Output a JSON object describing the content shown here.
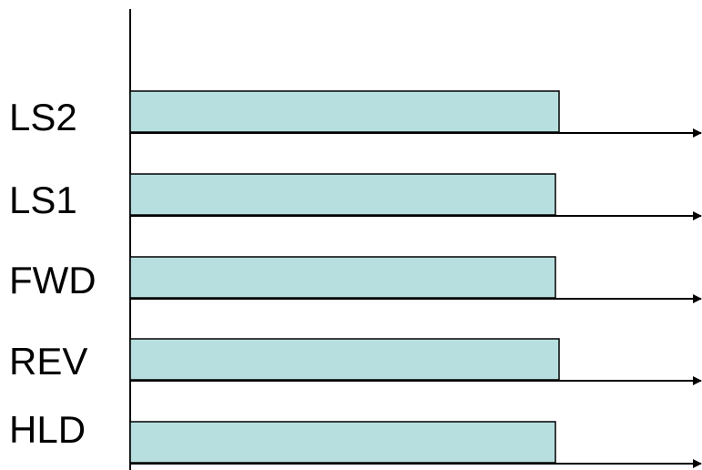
{
  "diagram": {
    "signals": [
      {
        "label": "LS2"
      },
      {
        "label": "LS1"
      },
      {
        "label": "FWD"
      },
      {
        "label": "REV"
      },
      {
        "label": "HLD"
      }
    ],
    "colors": {
      "bar_fill": "#b8dfe0",
      "bar_stroke": "#000000",
      "line": "#000000",
      "background": "#ffffff"
    }
  }
}
